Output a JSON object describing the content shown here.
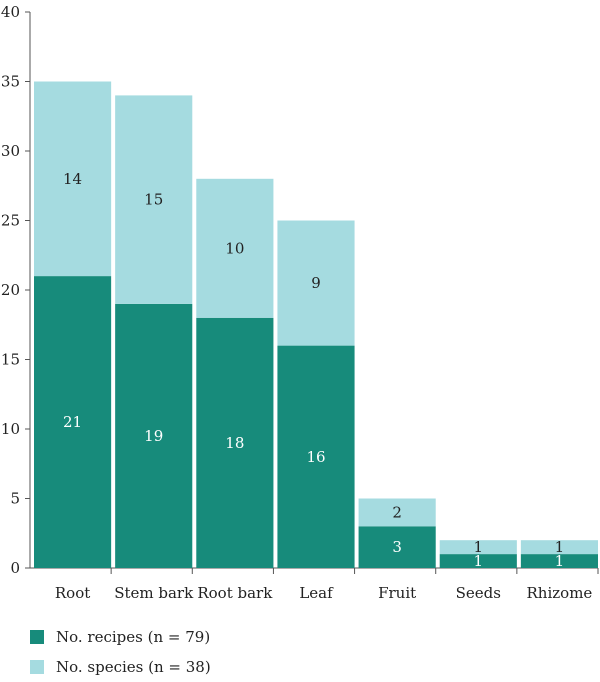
{
  "chart_data": {
    "type": "bar",
    "stacked": true,
    "categories": [
      "Root",
      "Stem bark",
      "Root bark",
      "Leaf",
      "Fruit",
      "Seeds",
      "Rhizome"
    ],
    "series": [
      {
        "name": "No. recipes (n = 79)",
        "values": [
          21,
          19,
          18,
          16,
          3,
          1,
          1
        ],
        "color": "#178b7b",
        "label_color": "#ffffff"
      },
      {
        "name": "No. species (n = 38)",
        "values": [
          14,
          15,
          10,
          9,
          2,
          1,
          1
        ],
        "color": "#a5dbe0",
        "label_color": "#222222"
      }
    ],
    "yticks": [
      0,
      5,
      10,
      15,
      20,
      25,
      30,
      35,
      40
    ],
    "ylim": [
      0,
      40
    ],
    "title": "",
    "xlabel": "",
    "ylabel": "",
    "grid": false,
    "legend_position": "bottom-left"
  }
}
